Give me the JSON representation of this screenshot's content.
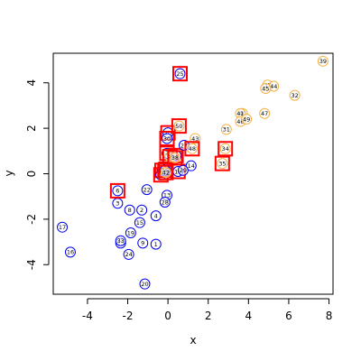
{
  "chart_data": {
    "type": "scatter",
    "xlabel": "x",
    "ylabel": "y",
    "xlim": [
      -5.7,
      8.2
    ],
    "ylim": [
      -5.3,
      5.3
    ],
    "x_ticks": [
      -4,
      -2,
      0,
      2,
      4,
      6,
      8
    ],
    "y_ticks": [
      -4,
      -2,
      0,
      2,
      4
    ],
    "grid": false,
    "colors": {
      "group_a": "#0000ee",
      "group_b": "#f5b041",
      "highlight_box": "#ff0000",
      "axis": "#000000"
    },
    "points": [
      {
        "label": "1",
        "x": -0.6,
        "y": -3.1,
        "group": "a",
        "boxed": false
      },
      {
        "label": "2",
        "x": -1.3,
        "y": -1.6,
        "group": "a",
        "boxed": false
      },
      {
        "label": "3",
        "x": -2.5,
        "y": -1.3,
        "group": "a",
        "boxed": false
      },
      {
        "label": "4",
        "x": -0.6,
        "y": -1.85,
        "group": "a",
        "boxed": false
      },
      {
        "label": "5",
        "x": -0.1,
        "y": 0.2,
        "group": "a",
        "boxed": true
      },
      {
        "label": "6",
        "x": -2.5,
        "y": -0.75,
        "group": "a",
        "boxed": true
      },
      {
        "label": "7",
        "x": -0.05,
        "y": 0.9,
        "group": "a",
        "boxed": true
      },
      {
        "label": "8",
        "x": -1.9,
        "y": -1.6,
        "group": "a",
        "boxed": false
      },
      {
        "label": "9",
        "x": -1.25,
        "y": -3.05,
        "group": "a",
        "boxed": false
      },
      {
        "label": "10",
        "x": 0.0,
        "y": 1.8,
        "group": "a",
        "boxed": true
      },
      {
        "label": "11",
        "x": 0.4,
        "y": 0.8,
        "group": "a",
        "boxed": true
      },
      {
        "label": "12",
        "x": -0.3,
        "y": 0.15,
        "group": "a",
        "boxed": true
      },
      {
        "label": "13",
        "x": -0.05,
        "y": -0.95,
        "group": "a",
        "boxed": false
      },
      {
        "label": "14",
        "x": 1.15,
        "y": 0.35,
        "group": "a",
        "boxed": false
      },
      {
        "label": "15",
        "x": -1.4,
        "y": -2.15,
        "group": "a",
        "boxed": false
      },
      {
        "label": "16",
        "x": -4.85,
        "y": -3.45,
        "group": "a",
        "boxed": false
      },
      {
        "label": "17",
        "x": -5.25,
        "y": -2.35,
        "group": "a",
        "boxed": false
      },
      {
        "label": "18",
        "x": 0.5,
        "y": 0.1,
        "group": "a",
        "boxed": true
      },
      {
        "label": "19",
        "x": -1.85,
        "y": -2.6,
        "group": "a",
        "boxed": false
      },
      {
        "label": "20",
        "x": -1.15,
        "y": -4.85,
        "group": "a",
        "boxed": false
      },
      {
        "label": "21",
        "x": -0.35,
        "y": -0.05,
        "group": "a",
        "boxed": true
      },
      {
        "label": "22",
        "x": -1.05,
        "y": -0.7,
        "group": "a",
        "boxed": false
      },
      {
        "label": "23",
        "x": -2.35,
        "y": -3.05,
        "group": "a",
        "boxed": false
      },
      {
        "label": "24",
        "x": -1.95,
        "y": -3.55,
        "group": "a",
        "boxed": false
      },
      {
        "label": "25",
        "x": 0.6,
        "y": 4.4,
        "group": "a",
        "boxed": true
      },
      {
        "label": "26",
        "x": -0.15,
        "y": 0.15,
        "group": "a",
        "boxed": true
      },
      {
        "label": "27",
        "x": 0.8,
        "y": 1.25,
        "group": "a",
        "boxed": false
      },
      {
        "label": "28",
        "x": -0.15,
        "y": -1.25,
        "group": "a",
        "boxed": false
      },
      {
        "label": "29",
        "x": 0.75,
        "y": 0.15,
        "group": "a",
        "boxed": false
      },
      {
        "label": "30",
        "x": -0.05,
        "y": 1.55,
        "group": "a",
        "boxed": true
      },
      {
        "label": "31",
        "x": 2.9,
        "y": 1.95,
        "group": "b",
        "boxed": false
      },
      {
        "label": "32",
        "x": 6.3,
        "y": 3.45,
        "group": "b",
        "boxed": false
      },
      {
        "label": "33",
        "x": -2.35,
        "y": -2.95,
        "group": "a",
        "boxed": false
      },
      {
        "label": "34",
        "x": 2.85,
        "y": 1.1,
        "group": "b",
        "boxed": true
      },
      {
        "label": "35",
        "x": 2.7,
        "y": 0.45,
        "group": "b",
        "boxed": true
      },
      {
        "label": "36",
        "x": 0.1,
        "y": 0.75,
        "group": "b",
        "boxed": true
      },
      {
        "label": "37",
        "x": 4.95,
        "y": 3.9,
        "group": "b",
        "boxed": false
      },
      {
        "label": "38",
        "x": 0.35,
        "y": 0.7,
        "group": "b",
        "boxed": true
      },
      {
        "label": "39",
        "x": 7.7,
        "y": 4.95,
        "group": "b",
        "boxed": false
      },
      {
        "label": "40",
        "x": 3.7,
        "y": 2.65,
        "group": "b",
        "boxed": false
      },
      {
        "label": "41",
        "x": 3.6,
        "y": 2.65,
        "group": "b",
        "boxed": false
      },
      {
        "label": "42",
        "x": -0.1,
        "y": 0.05,
        "group": "b",
        "boxed": true
      },
      {
        "label": "43",
        "x": 1.35,
        "y": 1.55,
        "group": "b",
        "boxed": false
      },
      {
        "label": "44",
        "x": 5.25,
        "y": 3.85,
        "group": "b",
        "boxed": false
      },
      {
        "label": "45",
        "x": 4.85,
        "y": 3.75,
        "group": "b",
        "boxed": false
      },
      {
        "label": "46",
        "x": 3.6,
        "y": 2.3,
        "group": "b",
        "boxed": false
      },
      {
        "label": "47",
        "x": 4.8,
        "y": 2.65,
        "group": "b",
        "boxed": false
      },
      {
        "label": "48",
        "x": 1.2,
        "y": 1.1,
        "group": "b",
        "boxed": true
      },
      {
        "label": "49",
        "x": 3.9,
        "y": 2.4,
        "group": "b",
        "boxed": false
      },
      {
        "label": "50",
        "x": 0.55,
        "y": 2.1,
        "group": "b",
        "boxed": true
      }
    ]
  }
}
